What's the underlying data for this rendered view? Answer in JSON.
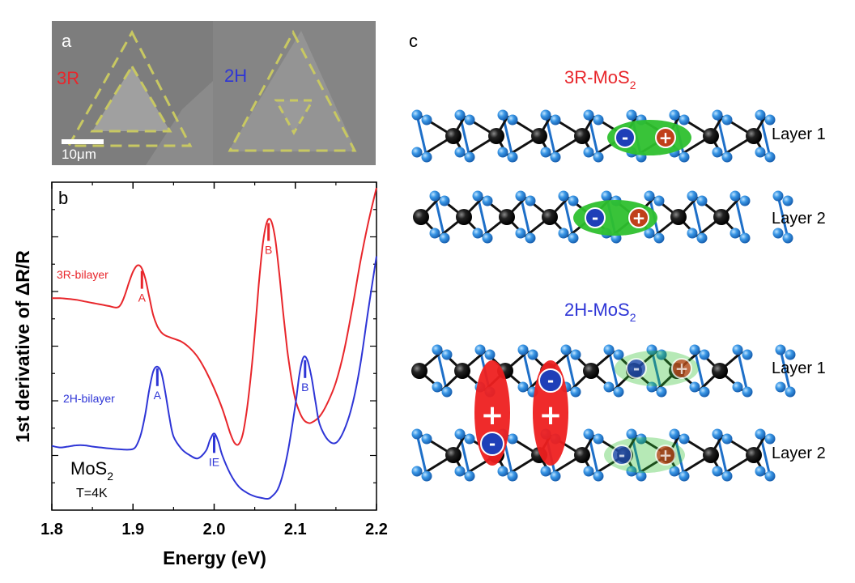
{
  "panel_a": {
    "label": "a",
    "left_label": "3R",
    "right_label": "2H",
    "scalebar_label": "10μm",
    "colors": {
      "label_3R": "#e8262b",
      "label_2H": "#2e35d6",
      "dashed": "#c8c862",
      "background": "#7f7f7f"
    }
  },
  "panel_b": {
    "label": "b",
    "ylabel": "1st derivative of ΔR/R",
    "xlabel": "Energy (eV)",
    "material_main": "MoS",
    "material_sub": "2",
    "temperature": "T=4K",
    "series_3R_label": "3R-bilayer",
    "series_2H_label": "2H-bilayer",
    "marker_labels": {
      "A_3R": "A",
      "B_3R": "B",
      "A_2H": "A",
      "IE_2H": "IE",
      "B_2H": "B"
    },
    "colors": {
      "series_3R": "#e8262b",
      "series_2H": "#2e35d6"
    }
  },
  "chart_data": {
    "type": "line",
    "title": "",
    "xlabel": "Energy (eV)",
    "ylabel": "1st derivative of ΔR/R",
    "xlim": [
      1.8,
      2.2
    ],
    "xticks": [
      1.8,
      1.9,
      2.0,
      2.1,
      2.2
    ],
    "x_tick_labels": [
      "1.8",
      "1.9",
      "2.0",
      "2.1",
      "2.2"
    ],
    "ylim": [
      0,
      10
    ],
    "y_tick_labels_shown": false,
    "grid": false,
    "series": [
      {
        "name": "3R-bilayer",
        "color": "#e8262b",
        "x": [
          1.8,
          1.81,
          1.82,
          1.83,
          1.84,
          1.85,
          1.86,
          1.87,
          1.88,
          1.885,
          1.89,
          1.895,
          1.9,
          1.905,
          1.91,
          1.915,
          1.92,
          1.925,
          1.93,
          1.935,
          1.94,
          1.95,
          1.96,
          1.97,
          1.98,
          1.99,
          2.0,
          2.01,
          2.02,
          2.025,
          2.03,
          2.035,
          2.04,
          2.045,
          2.05,
          2.055,
          2.06,
          2.065,
          2.07,
          2.075,
          2.08,
          2.085,
          2.09,
          2.095,
          2.1,
          2.105,
          2.11,
          2.115,
          2.12,
          2.13,
          2.14,
          2.15,
          2.16,
          2.17,
          2.18,
          2.19,
          2.2
        ],
        "y": [
          6.45,
          6.45,
          6.43,
          6.4,
          6.35,
          6.3,
          6.25,
          6.2,
          6.15,
          6.25,
          6.55,
          6.95,
          7.3,
          7.5,
          7.45,
          7.1,
          6.5,
          5.9,
          5.55,
          5.35,
          5.25,
          5.15,
          5.05,
          4.85,
          4.55,
          4.1,
          3.55,
          2.9,
          2.1,
          1.8,
          1.75,
          2.05,
          2.8,
          3.9,
          5.3,
          6.9,
          8.2,
          8.9,
          8.95,
          8.4,
          7.3,
          6.0,
          4.8,
          3.9,
          3.2,
          2.8,
          2.55,
          2.45,
          2.45,
          2.65,
          3.1,
          3.75,
          4.75,
          6.1,
          7.6,
          8.9,
          10.0
        ]
      },
      {
        "name": "2H-bilayer",
        "color": "#2e35d6",
        "x": [
          1.8,
          1.81,
          1.82,
          1.83,
          1.84,
          1.85,
          1.86,
          1.87,
          1.88,
          1.89,
          1.9,
          1.905,
          1.91,
          1.915,
          1.92,
          1.925,
          1.93,
          1.935,
          1.94,
          1.945,
          1.95,
          1.96,
          1.97,
          1.98,
          1.99,
          1.995,
          2.0,
          2.005,
          2.01,
          2.02,
          2.03,
          2.04,
          2.05,
          2.06,
          2.065,
          2.07,
          2.08,
          2.09,
          2.1,
          2.105,
          2.11,
          2.115,
          2.12,
          2.125,
          2.13,
          2.14,
          2.15,
          2.16,
          2.17,
          2.18,
          2.19,
          2.2
        ],
        "y": [
          1.7,
          1.65,
          1.68,
          1.72,
          1.72,
          1.68,
          1.65,
          1.62,
          1.6,
          1.58,
          1.6,
          1.75,
          2.1,
          2.7,
          3.5,
          4.1,
          4.25,
          4.05,
          3.4,
          2.6,
          2.0,
          1.6,
          1.4,
          1.3,
          1.55,
          1.9,
          2.1,
          1.85,
          1.4,
          0.8,
          0.4,
          0.2,
          0.08,
          0.02,
          0.0,
          0.05,
          0.4,
          1.4,
          3.0,
          4.0,
          4.55,
          4.45,
          3.9,
          3.1,
          2.4,
          1.9,
          1.8,
          2.2,
          3.0,
          4.3,
          6.1,
          7.8
        ]
      }
    ],
    "annotations": [
      {
        "text": "A",
        "series": "3R-bilayer",
        "x": 1.911
      },
      {
        "text": "B",
        "series": "3R-bilayer",
        "x": 2.067
      },
      {
        "text": "A",
        "series": "2H-bilayer",
        "x": 1.93
      },
      {
        "text": "IE",
        "series": "2H-bilayer",
        "x": 2.0
      },
      {
        "text": "B",
        "series": "2H-bilayer",
        "x": 2.112
      }
    ]
  },
  "panel_c": {
    "label": "c",
    "title_3R_main": "3R-MoS",
    "title_3R_sub": "2",
    "title_2H_main": "2H-MoS",
    "title_2H_sub": "2",
    "layer1_label": "Layer 1",
    "layer2_label": "Layer 2",
    "minus": "-",
    "plus": "+",
    "colors": {
      "title_3R": "#e8262b",
      "title_2H": "#2e35d6",
      "metal_atom": "#111111",
      "chalcogen_atom": "#2f8fe0",
      "exciton": "#2ec02e",
      "interlayer_exciton": "#ee2020",
      "electron": "#1f3fb8",
      "hole": "#c0401a"
    }
  }
}
